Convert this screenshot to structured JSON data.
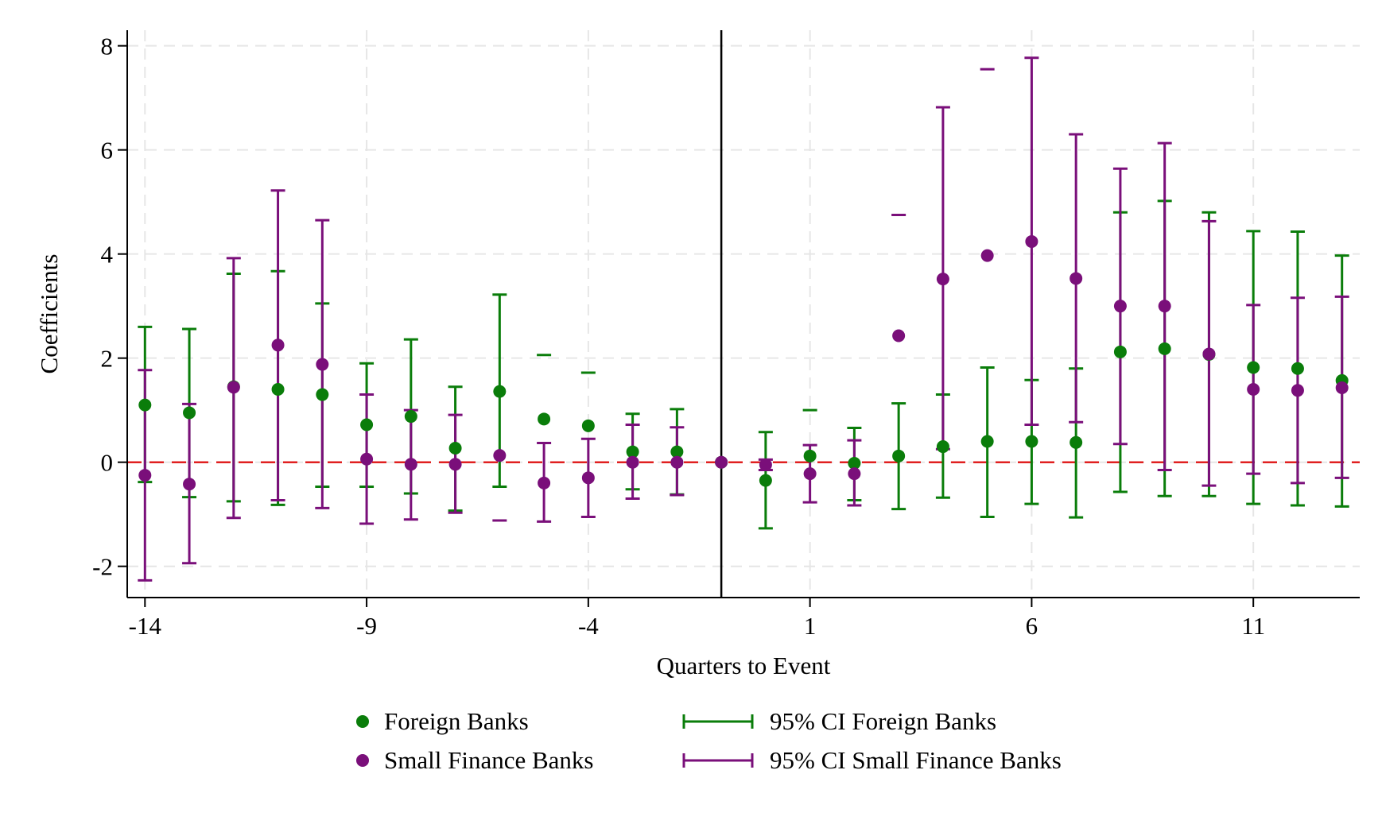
{
  "chart_data": {
    "type": "scatter",
    "title": "",
    "xlabel": "Quarters to Event",
    "ylabel": "Coefficients",
    "xlim": [
      -14.4,
      13.4
    ],
    "ylim": [
      -2.6,
      8.3
    ],
    "xticks": [
      -14,
      -9,
      -4,
      1,
      6,
      11
    ],
    "yticks": [
      -2,
      0,
      2,
      4,
      6,
      8
    ],
    "grid": true,
    "event_line_x": -1,
    "zero_line_y": 0,
    "x": [
      -14,
      -13,
      -12,
      -11,
      -10,
      -9,
      -8,
      -7,
      -6,
      -5,
      -4,
      -3,
      -2,
      -1,
      0,
      1,
      2,
      3,
      4,
      5,
      6,
      7,
      8,
      9,
      10,
      11,
      12,
      13
    ],
    "series": [
      {
        "name": "Foreign Banks",
        "color": "#0a7d0a",
        "values": [
          1.1,
          0.95,
          1.45,
          1.4,
          1.3,
          0.72,
          0.88,
          0.27,
          1.36,
          0.83,
          0.7,
          0.2,
          0.2,
          0.0,
          -0.35,
          0.12,
          -0.02,
          0.12,
          0.3,
          0.4,
          0.4,
          0.38,
          2.12,
          2.18,
          2.07,
          1.82,
          1.8,
          1.57
        ],
        "ci_low": [
          -0.38,
          -0.67,
          -0.75,
          -0.82,
          -0.47,
          -0.47,
          -0.6,
          -0.93,
          -0.47,
          null,
          null,
          -0.52,
          -0.62,
          null,
          -1.27,
          null,
          -0.73,
          -0.9,
          -0.68,
          -1.05,
          -0.8,
          -1.06,
          -0.57,
          -0.65,
          -0.65,
          -0.8,
          -0.83,
          -0.85
        ],
        "ci_high": [
          2.6,
          2.56,
          3.62,
          3.67,
          3.05,
          1.9,
          2.36,
          1.45,
          3.22,
          2.06,
          1.72,
          0.93,
          1.02,
          null,
          0.58,
          1.0,
          0.66,
          1.13,
          1.3,
          1.82,
          1.58,
          1.8,
          4.8,
          5.02,
          4.8,
          4.44,
          4.43,
          3.97
        ]
      },
      {
        "name": "Small Finance Banks",
        "color": "#7a0f7a",
        "values": [
          -0.25,
          -0.42,
          1.44,
          2.25,
          1.88,
          0.06,
          -0.04,
          -0.04,
          0.13,
          -0.4,
          -0.3,
          0.0,
          0.0,
          0.0,
          -0.05,
          -0.22,
          -0.22,
          2.43,
          3.52,
          3.97,
          4.24,
          3.53,
          3.0,
          3.0,
          2.08,
          1.4,
          1.38,
          1.43
        ],
        "ci_low": [
          -2.27,
          -1.94,
          -1.07,
          -0.73,
          -0.88,
          -1.18,
          -1.1,
          -0.97,
          -1.12,
          -1.14,
          -1.05,
          -0.7,
          -0.63,
          null,
          -0.15,
          -0.77,
          -0.83,
          null,
          0.25,
          null,
          0.72,
          0.77,
          0.35,
          -0.15,
          -0.45,
          -0.22,
          -0.4,
          -0.3
        ],
        "ci_high": [
          1.77,
          1.12,
          3.92,
          5.22,
          4.65,
          1.3,
          1.0,
          0.91,
          null,
          0.37,
          0.45,
          0.72,
          0.67,
          null,
          0.05,
          0.33,
          0.42,
          4.75,
          6.82,
          7.55,
          7.77,
          6.3,
          5.64,
          6.13,
          4.63,
          3.02,
          3.16,
          3.18
        ]
      }
    ],
    "legend": {
      "position": "bottom",
      "entries": [
        {
          "label": "Foreign Banks",
          "kind": "marker",
          "color": "#0a7d0a"
        },
        {
          "label": "Small Finance Banks",
          "kind": "marker",
          "color": "#7a0f7a"
        },
        {
          "label": "95% CI Foreign Banks",
          "kind": "capped-line",
          "color": "#0a7d0a"
        },
        {
          "label": "95% CI Small Finance Banks",
          "kind": "capped-line",
          "color": "#7a0f7a"
        }
      ]
    },
    "colors": {
      "zero_line": "#e02020",
      "event_line": "#000000",
      "grid": "#e6e6e6"
    }
  }
}
